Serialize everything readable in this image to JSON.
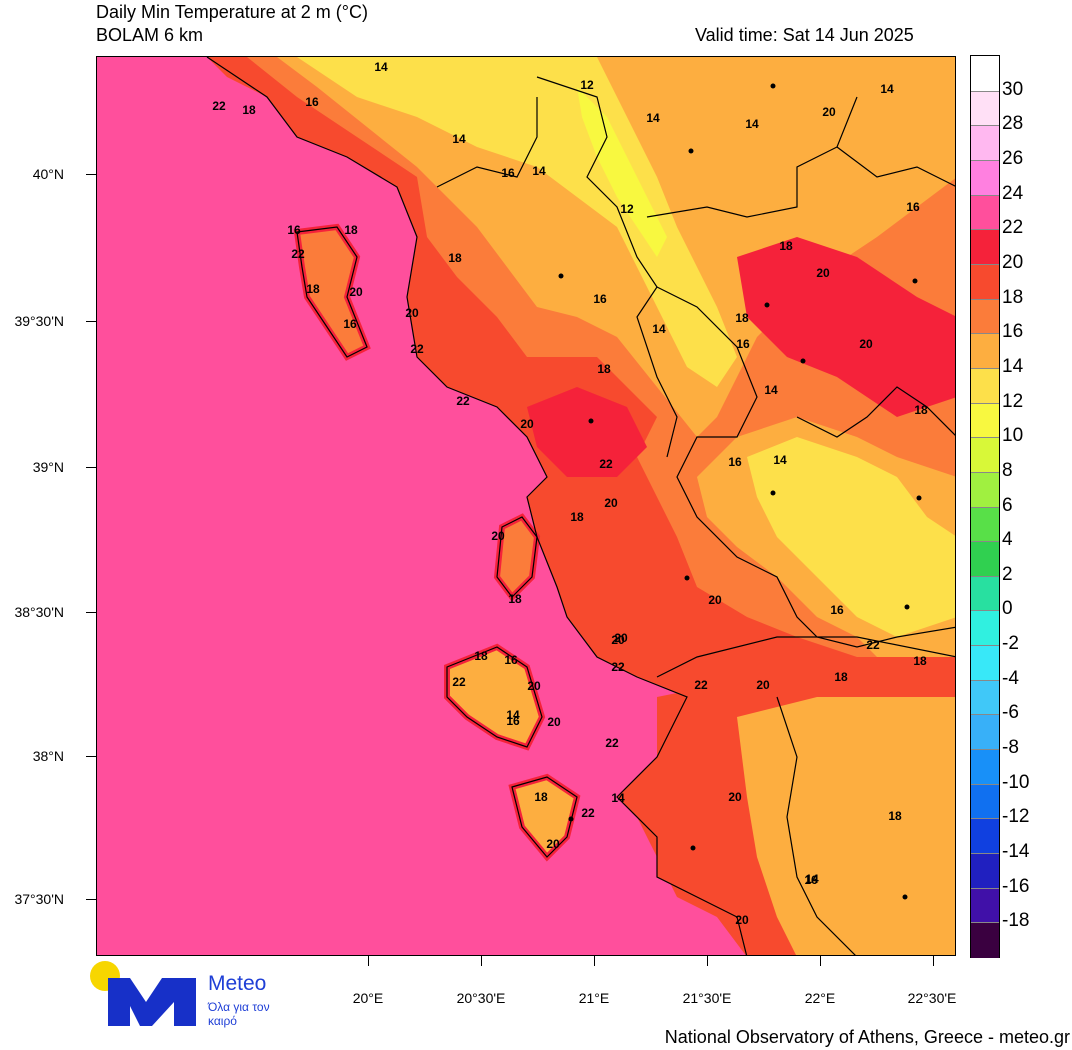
{
  "header": {
    "title": "Daily Min Temperature at 2 m (°C)",
    "model": "BOLAM 6 km",
    "valid_time": "Valid time: Sat 14 Jun 2025"
  },
  "axes": {
    "lat_labels": [
      "40°N",
      "39°30'N",
      "39°N",
      "38°30'N",
      "38°N",
      "37°30'N"
    ],
    "lon_labels": [
      "20°E",
      "20°30'E",
      "21°E",
      "21°30'E",
      "22°E",
      "22°30'E"
    ]
  },
  "colorbar": {
    "labels": [
      "30",
      "28",
      "26",
      "24",
      "22",
      "20",
      "18",
      "16",
      "14",
      "12",
      "10",
      "8",
      "6",
      "4",
      "2",
      "0",
      "-2",
      "-4",
      "-6",
      "-8",
      "-10",
      "-12",
      "-14",
      "-16",
      "-18"
    ],
    "colors": [
      "#ffffff",
      "#ffe0f6",
      "#ffb8f0",
      "#ff80e0",
      "#ff4f9c",
      "#f5223a",
      "#f74a2e",
      "#fb7c3a",
      "#fdae40",
      "#fde04a",
      "#f8f840",
      "#d8f838",
      "#a0f040",
      "#58e048",
      "#30d050",
      "#28e0a0",
      "#30f0e0",
      "#38e8f8",
      "#40c8f8",
      "#38b0f8",
      "#1890f8",
      "#1070f0",
      "#1040e0",
      "#2020c0",
      "#4010a8",
      "#3a0040"
    ]
  },
  "map": {
    "sea_color": "#ff4f9c",
    "labels": [
      {
        "text": "14"
      },
      {
        "text": "22"
      },
      {
        "text": "18"
      },
      {
        "text": "16"
      },
      {
        "text": "12"
      },
      {
        "text": "14"
      },
      {
        "text": "14"
      },
      {
        "text": "14"
      },
      {
        "text": "20"
      },
      {
        "text": "14"
      },
      {
        "text": "16"
      },
      {
        "text": "14"
      },
      {
        "text": "12"
      },
      {
        "text": "16"
      },
      {
        "text": "18"
      },
      {
        "text": "20"
      },
      {
        "text": "16"
      },
      {
        "text": "18"
      },
      {
        "text": "16"
      },
      {
        "text": "18"
      },
      {
        "text": "22"
      },
      {
        "text": "20"
      },
      {
        "text": "18"
      },
      {
        "text": "20"
      },
      {
        "text": "16"
      },
      {
        "text": "20"
      },
      {
        "text": "14"
      },
      {
        "text": "18"
      },
      {
        "text": "22"
      },
      {
        "text": "16"
      },
      {
        "text": "18"
      },
      {
        "text": "14"
      },
      {
        "text": "22"
      },
      {
        "text": "14"
      },
      {
        "text": "20"
      },
      {
        "text": "18"
      },
      {
        "text": "22"
      },
      {
        "text": "20"
      },
      {
        "text": "18"
      },
      {
        "text": "16"
      },
      {
        "text": "20"
      },
      {
        "text": "18"
      },
      {
        "text": "16"
      },
      {
        "text": "18"
      },
      {
        "text": "20"
      },
      {
        "text": "22"
      },
      {
        "text": "14"
      },
      {
        "text": "20"
      },
      {
        "text": "16"
      },
      {
        "text": "22"
      },
      {
        "text": "20"
      },
      {
        "text": "20"
      },
      {
        "text": "22"
      },
      {
        "text": "18"
      },
      {
        "text": "18"
      },
      {
        "text": "16"
      },
      {
        "text": "22"
      },
      {
        "text": "20"
      },
      {
        "text": "22"
      },
      {
        "text": "18"
      },
      {
        "text": "20"
      },
      {
        "text": "22"
      },
      {
        "text": "14"
      },
      {
        "text": "18"
      },
      {
        "text": "20"
      },
      {
        "text": "16"
      },
      {
        "text": "20"
      },
      {
        "text": "14"
      },
      {
        "text": "20"
      }
    ]
  },
  "logo": {
    "brand": "Meteo",
    "tagline": "Όλα για τον καιρό"
  },
  "footer": {
    "credit": "National Observatory of Athens, Greece - meteo.gr"
  }
}
